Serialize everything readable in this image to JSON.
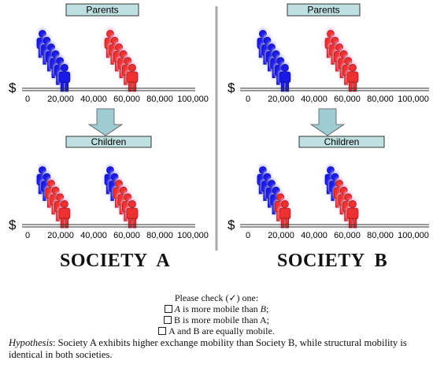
{
  "panels": [
    {
      "id": "a",
      "society": "SOCIETY  A",
      "top_label": "Parents",
      "bottom_label": "Children",
      "currency": "$",
      "tick_labels": [
        "0",
        "20,000",
        "40,000",
        "60,000",
        "80,000",
        "100,000"
      ],
      "axis_max": 100000,
      "parents": {
        "blue_group_start": 9000,
        "red_group_start": 50000,
        "count": 6
      },
      "children": {
        "group1": {
          "start": 9000,
          "pattern": [
            "blue",
            "blue",
            "red",
            "red",
            "red",
            "red"
          ]
        },
        "group2": {
          "start": 50000,
          "pattern": [
            "blue",
            "blue",
            "red",
            "red",
            "red",
            "red"
          ]
        }
      }
    },
    {
      "id": "b",
      "society": "SOCIETY  B",
      "top_label": "Parents",
      "bottom_label": "Children",
      "currency": "$",
      "tick_labels": [
        "0",
        "20,000",
        "40,000",
        "60,000",
        "80,000",
        "100,000"
      ],
      "axis_max": 100000,
      "parents": {
        "blue_group_start": 9000,
        "red_group_start": 50000,
        "count": 6
      },
      "children": {
        "group1": {
          "start": 9000,
          "pattern": [
            "blue",
            "blue",
            "blue",
            "blue",
            "red",
            "red"
          ]
        },
        "group2": {
          "start": 50000,
          "pattern": [
            "blue",
            "blue",
            "red",
            "red",
            "red",
            "red"
          ]
        }
      }
    }
  ],
  "colors": {
    "blue": "#1a1ae6",
    "blue_glow": "#c8c8ff",
    "red": "#ee3030",
    "red_glow": "#f6c2e4",
    "label_box": "#bfe0e0",
    "label_border": "#333333",
    "arrow": "#9fcbd3",
    "divider": "#aaaaaa"
  },
  "icons": {
    "person": "person-icon",
    "arrow": "down-arrow-icon"
  },
  "survey": {
    "prompt": "Please check (✓) one:",
    "option_a_letter": "A",
    "option_a_mid": " is more mobile than ",
    "option_a_end_letter": "B",
    "option_a_tail": ";",
    "option_b": "B is more mobile than A;",
    "option_c": "A and B are equally mobile."
  },
  "hypothesis": {
    "lead": "Hypothesis",
    "text": ": Society A exhibits higher exchange mobility than Society B, while structural mobility is identical in both societies."
  }
}
